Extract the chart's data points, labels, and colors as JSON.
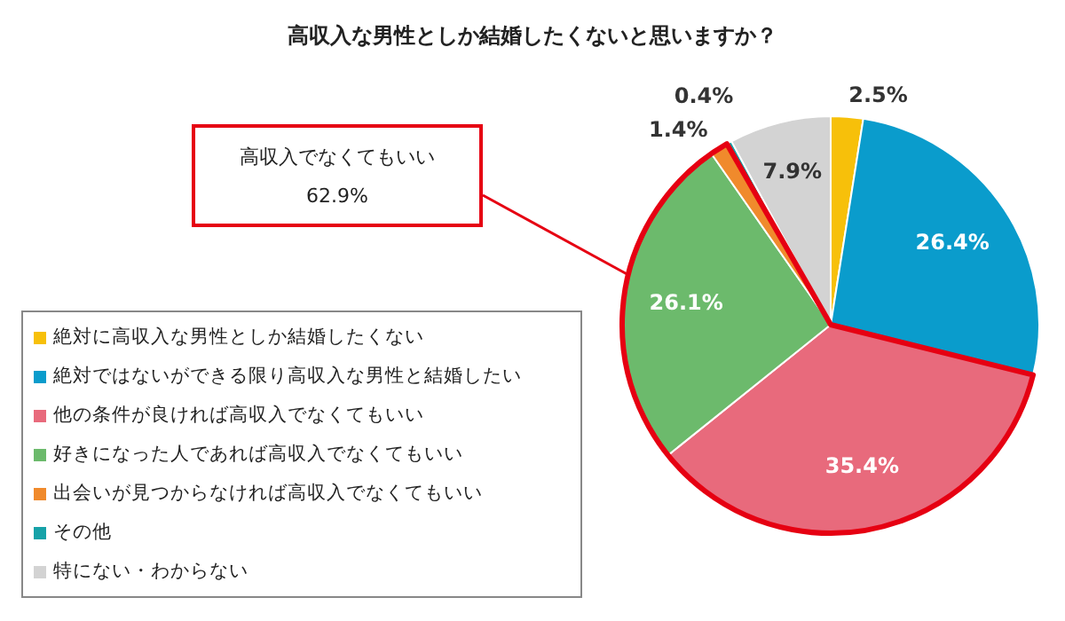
{
  "chart_data": {
    "type": "pie",
    "title": "高収入な男性としか結婚したくないと思いますか？",
    "categories": [
      "絶対に高収入な男性としか結婚したくない",
      "絶対ではないができる限り高収入な男性と結婚したい",
      "他の条件が良ければ高収入でなくてもいい",
      "好きになった人であれば高収入でなくてもいい",
      "出会いが見つからなければ高収入でなくてもいい",
      "その他",
      "特にない・わからない"
    ],
    "values": [
      2.5,
      26.4,
      35.4,
      26.1,
      1.4,
      0.4,
      7.9
    ],
    "value_labels": [
      "2.5%",
      "26.4%",
      "35.4%",
      "26.1%",
      "1.4%",
      "0.4%",
      "7.9%"
    ],
    "colors": [
      "#f7c00a",
      "#0a9ccc",
      "#e86a7c",
      "#6cba6c",
      "#f08a2c",
      "#16a2a8",
      "#d3d3d3"
    ],
    "annotations": [
      "高収入でなくてもいい\n62.9%"
    ],
    "legend": "left"
  }
}
